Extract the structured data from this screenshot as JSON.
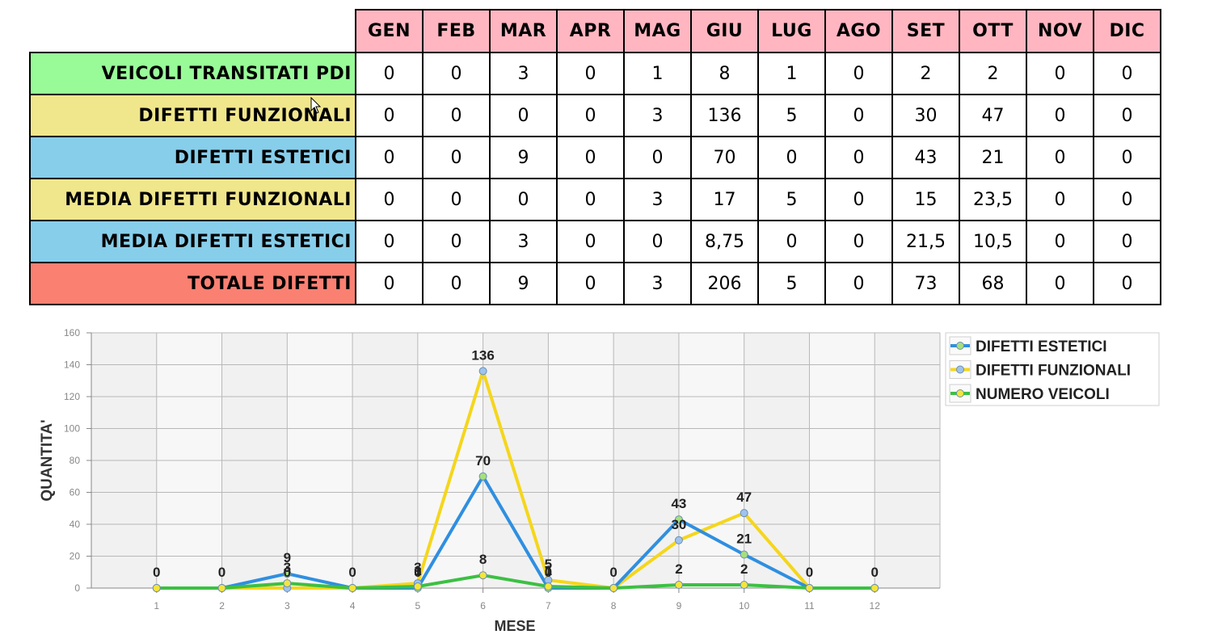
{
  "table": {
    "columns": [
      "GEN",
      "FEB",
      "MAR",
      "APR",
      "MAG",
      "GIU",
      "LUG",
      "AGO",
      "SET",
      "OTT",
      "NOV",
      "DIC"
    ],
    "rows": [
      {
        "label": "VEICOLI TRANSITATI PDI",
        "color": "#98fb98",
        "values": [
          "0",
          "0",
          "3",
          "0",
          "1",
          "8",
          "1",
          "0",
          "2",
          "2",
          "0",
          "0"
        ]
      },
      {
        "label": "DIFETTI FUNZIONALI",
        "color": "#f0e68c",
        "values": [
          "0",
          "0",
          "0",
          "0",
          "3",
          "136",
          "5",
          "0",
          "30",
          "47",
          "0",
          "0"
        ]
      },
      {
        "label": "DIFETTI ESTETICI",
        "color": "#87ceeb",
        "values": [
          "0",
          "0",
          "9",
          "0",
          "0",
          "70",
          "0",
          "0",
          "43",
          "21",
          "0",
          "0"
        ]
      },
      {
        "label": "MEDIA DIFETTI FUNZIONALI",
        "color": "#f0e68c",
        "values": [
          "0",
          "0",
          "0",
          "0",
          "3",
          "17",
          "5",
          "0",
          "15",
          "23,5",
          "0",
          "0"
        ]
      },
      {
        "label": "MEDIA DIFETTI ESTETICI",
        "color": "#87ceeb",
        "values": [
          "0",
          "0",
          "3",
          "0",
          "0",
          "8,75",
          "0",
          "0",
          "21,5",
          "10,5",
          "0",
          "0"
        ]
      },
      {
        "label": "TOTALE DIFETTI",
        "color": "#fa8072",
        "values": [
          "0",
          "0",
          "9",
          "0",
          "3",
          "206",
          "5",
          "0",
          "73",
          "68",
          "0",
          "0"
        ]
      }
    ]
  },
  "chart_data": {
    "type": "line",
    "title": "",
    "xlabel": "MESE",
    "ylabel": "QUANTITA'",
    "x": [
      1,
      2,
      3,
      4,
      5,
      6,
      7,
      8,
      9,
      10,
      11,
      12
    ],
    "ylim": [
      0,
      160
    ],
    "yticks": [
      0,
      20,
      40,
      60,
      80,
      100,
      120,
      140,
      160
    ],
    "grid": true,
    "legend_position": "right",
    "series": [
      {
        "name": "DIFETTI ESTETICI",
        "color": "#2f8fe0",
        "marker_color": "#a6e07a",
        "values": [
          0,
          0,
          9,
          0,
          0,
          70,
          0,
          0,
          43,
          21,
          0,
          0
        ]
      },
      {
        "name": "DIFETTI FUNZIONALI",
        "color": "#f5d61c",
        "marker_color": "#9fc3ef",
        "values": [
          0,
          0,
          0,
          0,
          3,
          136,
          5,
          0,
          30,
          47,
          0,
          0
        ]
      },
      {
        "name": "NUMERO VEICOLI",
        "color": "#3cc043",
        "marker_color": "#f5e53a",
        "values": [
          0,
          0,
          3,
          0,
          1,
          8,
          1,
          0,
          2,
          2,
          0,
          0
        ]
      }
    ],
    "point_labels": [
      {
        "x": 1,
        "text": "0",
        "v": 0
      },
      {
        "x": 2,
        "text": "0",
        "v": 0
      },
      {
        "x": 3,
        "text": "9",
        "v": 9
      },
      {
        "x": 3,
        "text": "3",
        "v": 3
      },
      {
        "x": 3,
        "text": "0",
        "v": 0
      },
      {
        "x": 4,
        "text": "0",
        "v": 0
      },
      {
        "x": 5,
        "text": "3",
        "v": 3
      },
      {
        "x": 5,
        "text": "1",
        "v": 1
      },
      {
        "x": 5,
        "text": "0",
        "v": 0
      },
      {
        "x": 6,
        "text": "136",
        "v": 136
      },
      {
        "x": 6,
        "text": "70",
        "v": 70
      },
      {
        "x": 6,
        "text": "8",
        "v": 8
      },
      {
        "x": 7,
        "text": "5",
        "v": 5
      },
      {
        "x": 7,
        "text": "1",
        "v": 1
      },
      {
        "x": 7,
        "text": "0",
        "v": 0
      },
      {
        "x": 8,
        "text": "0",
        "v": 0
      },
      {
        "x": 9,
        "text": "43",
        "v": 43
      },
      {
        "x": 9,
        "text": "30",
        "v": 30
      },
      {
        "x": 9,
        "text": "2",
        "v": 2
      },
      {
        "x": 10,
        "text": "47",
        "v": 47
      },
      {
        "x": 10,
        "text": "21",
        "v": 21
      },
      {
        "x": 10,
        "text": "2",
        "v": 2
      },
      {
        "x": 11,
        "text": "0",
        "v": 0
      },
      {
        "x": 12,
        "text": "0",
        "v": 0
      }
    ]
  }
}
